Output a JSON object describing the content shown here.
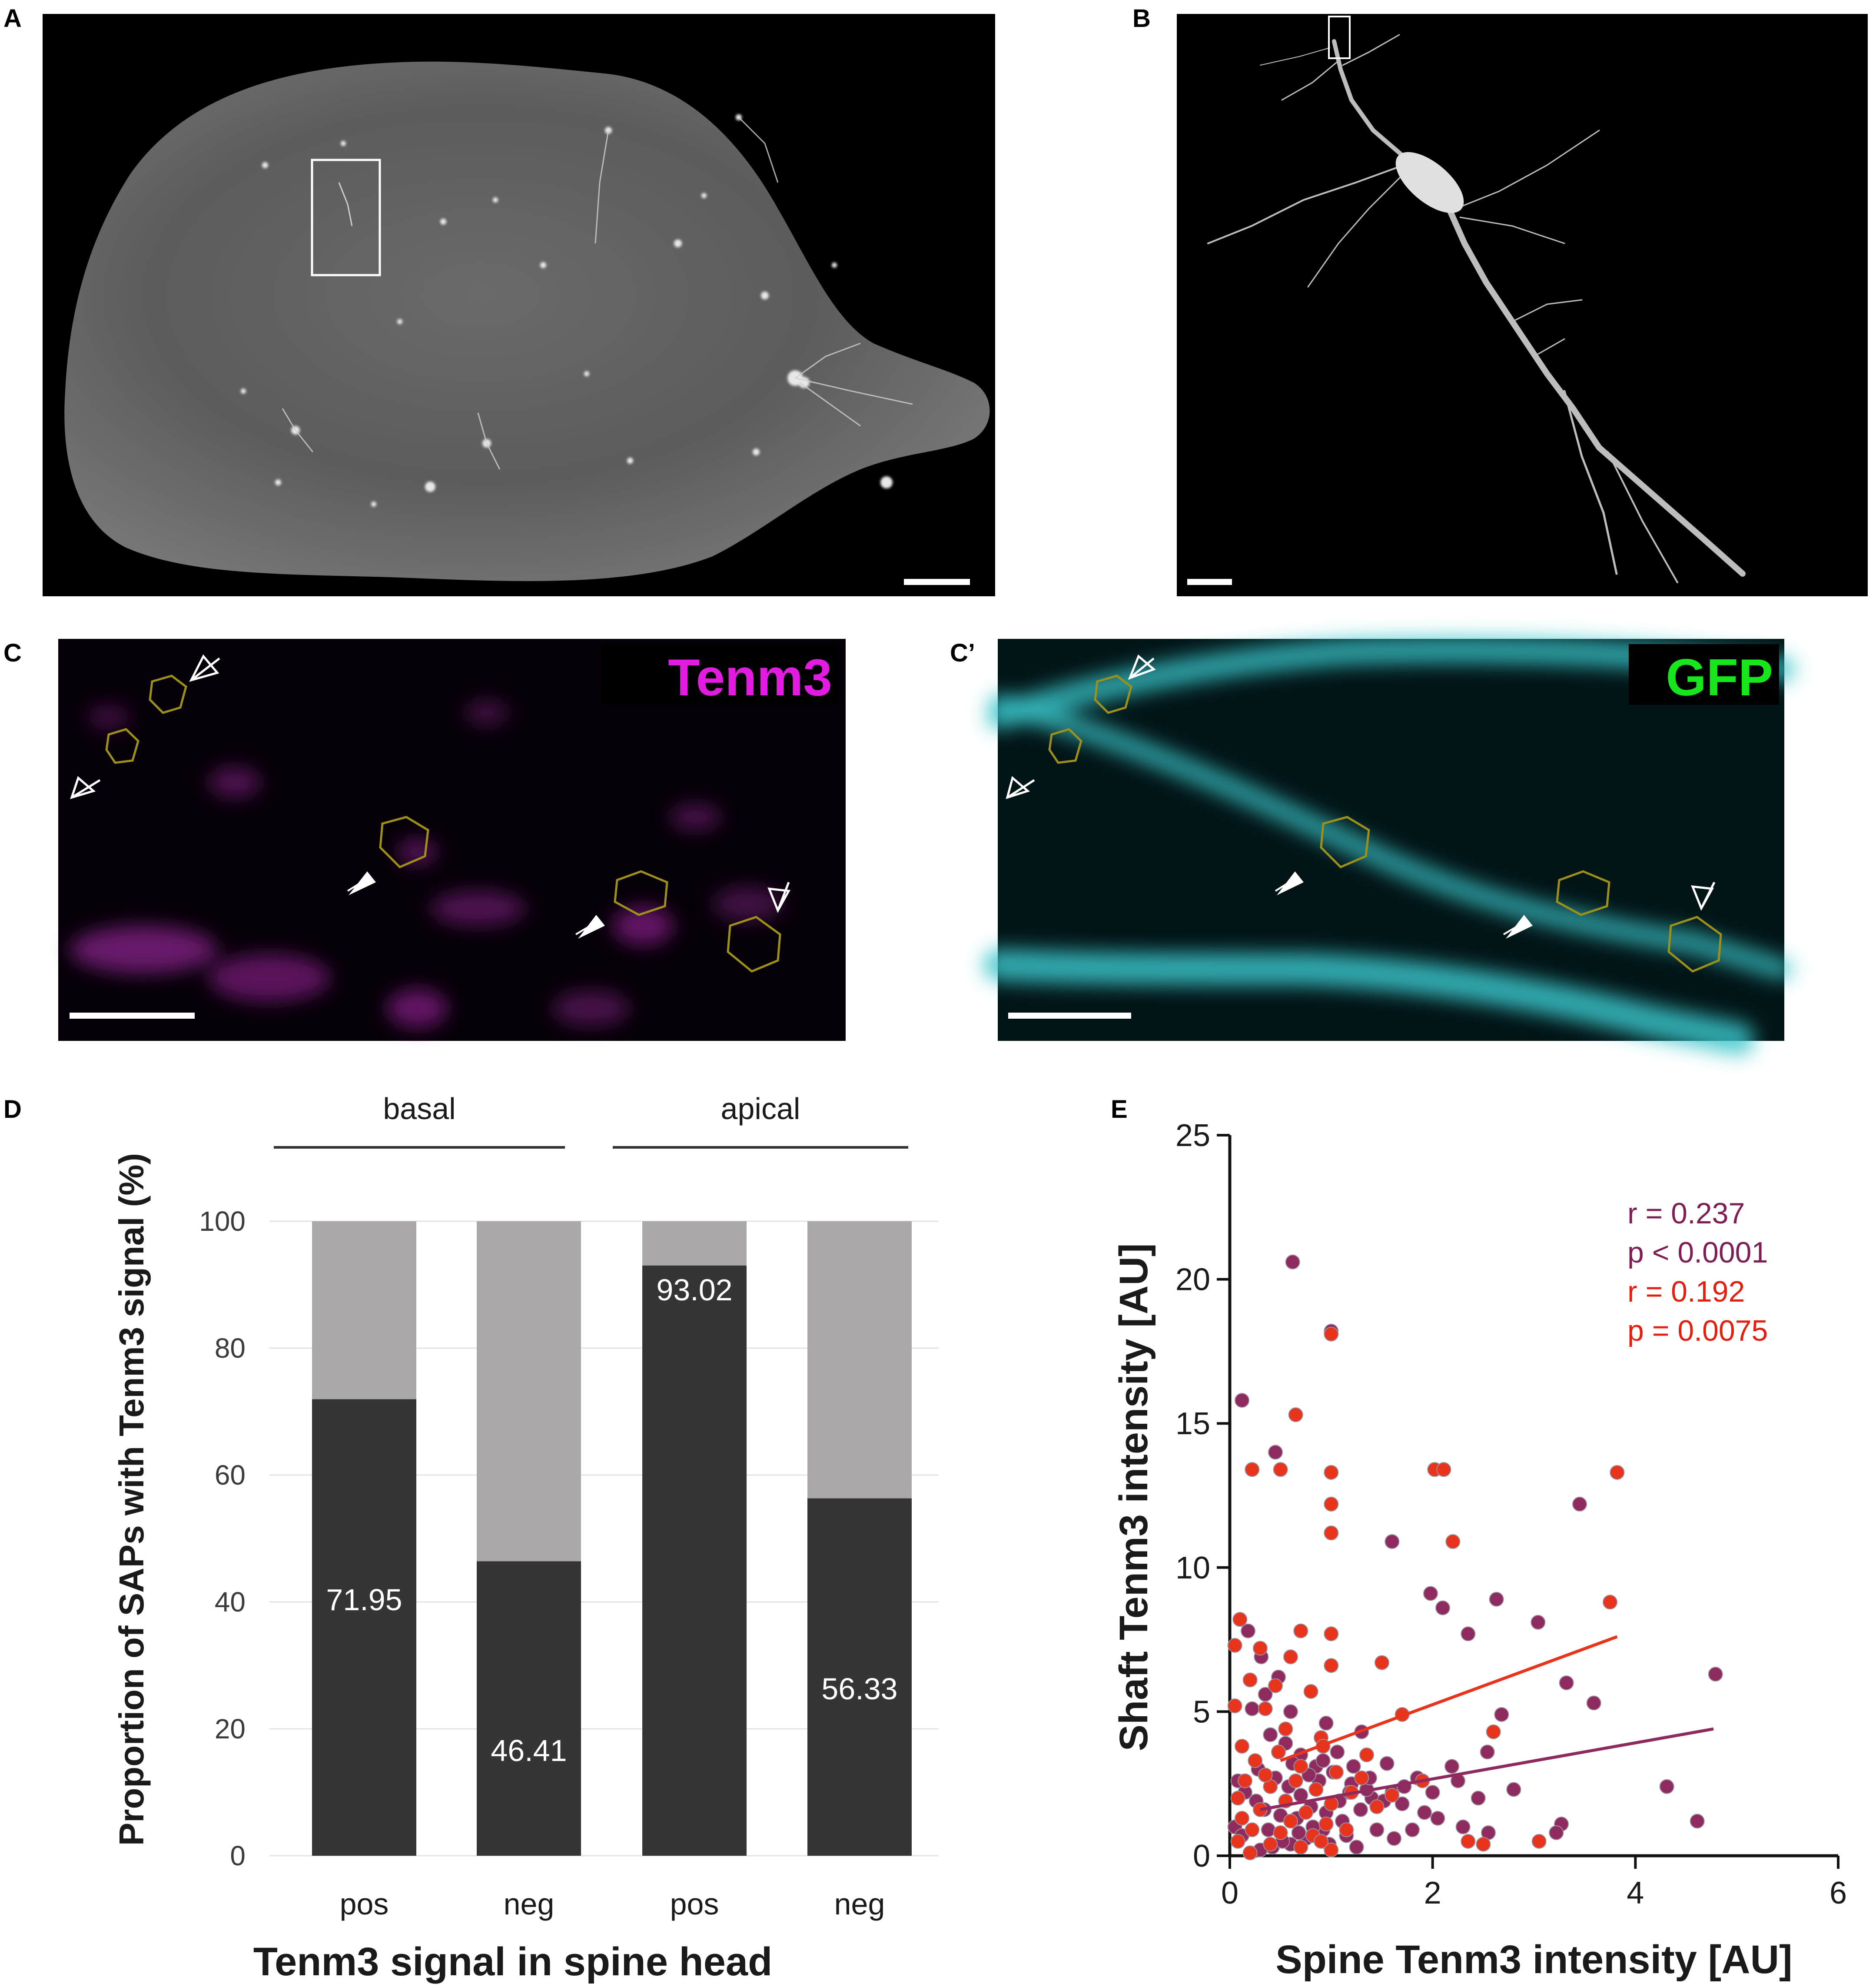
{
  "panels": {
    "A": {
      "label": "A"
    },
    "B": {
      "label": "B"
    },
    "C": {
      "label": "C",
      "channel": "Tenm3",
      "channel_color": "#e21be0"
    },
    "C2": {
      "label": "C’",
      "channel": "GFP",
      "channel_color": "#17e61d"
    },
    "D": {
      "label": "D"
    },
    "E": {
      "label": "E"
    }
  },
  "colors": {
    "micrograph_bg": "#000000",
    "tissue_gray": "#6e6e6e",
    "magenta": "#8a1f8c",
    "cyan": "#38c4c9",
    "roi_outline": "#9c8f1a",
    "bar_dark": "#353535",
    "bar_light": "#aaa8a8",
    "scatter_purple": "#8f2a5f",
    "scatter_red": "#e8341c",
    "stat_purple": "#7d1f52",
    "stat_red": "#e3200f"
  },
  "chart_data": [
    {
      "type": "bar",
      "panel": "D",
      "stacked": true,
      "group_labels": [
        "basal",
        "apical"
      ],
      "categories": [
        "pos",
        "neg",
        "pos",
        "neg"
      ],
      "values": [
        71.95,
        46.41,
        93.02,
        56.33
      ],
      "value_labels": [
        "71.95",
        "46.41",
        "93.02",
        "56.33"
      ],
      "ylabel": "Proportion of SAPs with Tenm3 signal (%)",
      "xlabel": "Tenm3 signal in spine head",
      "ylim": [
        0,
        100
      ],
      "yticks": [
        0,
        20,
        40,
        60,
        80,
        100
      ],
      "grid": true
    },
    {
      "type": "scatter",
      "panel": "E",
      "xlabel": "Spine Tenm3 intensity [AU]",
      "ylabel": "Shaft Tenm3 intensity [AU]",
      "xlim": [
        0,
        6
      ],
      "ylim": [
        0,
        25
      ],
      "xticks": [
        0,
        2,
        4,
        6
      ],
      "yticks": [
        0,
        5,
        10,
        15,
        20,
        25
      ],
      "annotations": [
        {
          "text": "r = 0.237",
          "color": "#7d1f52"
        },
        {
          "text": "p < 0.0001",
          "color": "#7d1f52"
        },
        {
          "text": "r = 0.192",
          "color": "#e3200f"
        },
        {
          "text": "p = 0.0075",
          "color": "#e3200f"
        }
      ],
      "series": [
        {
          "color": "#8f2a5f",
          "points": [
            [
              0.62,
              20.6
            ],
            [
              1.0,
              18.2
            ],
            [
              0.12,
              15.8
            ],
            [
              0.45,
              14.0
            ],
            [
              1.6,
              10.9
            ],
            [
              1.98,
              9.1
            ],
            [
              2.1,
              8.6
            ],
            [
              2.63,
              8.9
            ],
            [
              2.35,
              7.7
            ],
            [
              3.04,
              8.1
            ],
            [
              3.45,
              12.2
            ],
            [
              4.79,
              6.3
            ],
            [
              3.32,
              6.0
            ],
            [
              3.59,
              5.3
            ],
            [
              4.31,
              2.4
            ],
            [
              4.61,
              1.2
            ],
            [
              3.27,
              1.1
            ],
            [
              3.22,
              0.8
            ],
            [
              2.68,
              4.9
            ],
            [
              2.54,
              3.6
            ],
            [
              2.19,
              3.1
            ],
            [
              1.85,
              2.7
            ],
            [
              1.6,
              2.2
            ],
            [
              1.4,
              2.0
            ],
            [
              1.29,
              1.6
            ],
            [
              1.11,
              1.2
            ],
            [
              0.92,
              0.9
            ],
            [
              0.75,
              0.6
            ],
            [
              0.6,
              0.4
            ],
            [
              0.42,
              0.3
            ],
            [
              0.3,
              0.2
            ],
            [
              0.2,
              0.1
            ],
            [
              0.18,
              7.8
            ],
            [
              0.31,
              6.9
            ],
            [
              0.48,
              6.2
            ],
            [
              0.22,
              5.1
            ],
            [
              0.4,
              4.2
            ],
            [
              0.55,
              3.9
            ],
            [
              0.7,
              3.5
            ],
            [
              0.85,
              3.1
            ],
            [
              1.02,
              2.9
            ],
            [
              1.2,
              2.5
            ],
            [
              1.35,
              2.3
            ],
            [
              1.52,
              1.9
            ],
            [
              1.7,
              1.8
            ],
            [
              1.92,
              1.5
            ],
            [
              2.05,
              1.3
            ],
            [
              2.3,
              1.0
            ],
            [
              2.55,
              0.8
            ],
            [
              0.08,
              2.6
            ],
            [
              0.15,
              2.2
            ],
            [
              0.26,
              1.9
            ],
            [
              0.34,
              1.6
            ],
            [
              0.5,
              1.4
            ],
            [
              0.66,
              1.3
            ],
            [
              0.8,
              1.7
            ],
            [
              0.95,
              1.5
            ],
            [
              1.08,
              1.9
            ],
            [
              1.18,
              2.2
            ],
            [
              0.58,
              2.4
            ],
            [
              0.7,
              2.1
            ],
            [
              0.88,
              2.6
            ],
            [
              0.05,
              1.0
            ],
            [
              0.12,
              0.7
            ],
            [
              0.38,
              0.9
            ],
            [
              0.52,
              0.5
            ],
            [
              0.68,
              0.8
            ],
            [
              0.82,
              1.0
            ],
            [
              0.98,
              0.4
            ],
            [
              1.15,
              0.7
            ],
            [
              1.25,
              0.3
            ],
            [
              1.45,
              0.9
            ],
            [
              1.62,
              0.6
            ],
            [
              1.8,
              0.9
            ],
            [
              0.28,
              3.0
            ],
            [
              0.45,
              2.7
            ],
            [
              0.62,
              3.2
            ],
            [
              0.78,
              2.8
            ],
            [
              0.92,
              3.3
            ],
            [
              1.06,
              3.6
            ],
            [
              1.22,
              3.1
            ],
            [
              1.38,
              2.7
            ],
            [
              1.55,
              3.2
            ],
            [
              1.72,
              2.4
            ],
            [
              2.0,
              2.2
            ],
            [
              2.25,
              2.6
            ],
            [
              2.45,
              2.0
            ],
            [
              2.8,
              2.3
            ],
            [
              0.35,
              5.6
            ],
            [
              0.6,
              5.0
            ],
            [
              0.95,
              4.6
            ],
            [
              1.3,
              4.3
            ]
          ]
        },
        {
          "color": "#e8341c",
          "points": [
            [
              0.22,
              13.4
            ],
            [
              0.5,
              13.4
            ],
            [
              1.0,
              13.3
            ],
            [
              2.02,
              13.4
            ],
            [
              2.11,
              13.4
            ],
            [
              3.82,
              13.3
            ],
            [
              0.65,
              15.3
            ],
            [
              1.0,
              18.1
            ],
            [
              1.0,
              12.2
            ],
            [
              1.0,
              11.2
            ],
            [
              2.2,
              10.9
            ],
            [
              0.1,
              8.2
            ],
            [
              0.7,
              7.8
            ],
            [
              1.0,
              7.7
            ],
            [
              3.75,
              8.8
            ],
            [
              0.05,
              7.3
            ],
            [
              0.3,
              7.2
            ],
            [
              0.6,
              6.9
            ],
            [
              1.0,
              6.6
            ],
            [
              1.5,
              6.7
            ],
            [
              0.2,
              6.1
            ],
            [
              0.45,
              5.9
            ],
            [
              0.8,
              5.7
            ],
            [
              0.05,
              5.2
            ],
            [
              0.35,
              5.1
            ],
            [
              1.7,
              4.9
            ],
            [
              2.6,
              4.3
            ],
            [
              0.55,
              4.4
            ],
            [
              0.9,
              4.1
            ],
            [
              0.12,
              3.8
            ],
            [
              1.35,
              3.5
            ],
            [
              0.25,
              3.3
            ],
            [
              0.7,
              3.1
            ],
            [
              1.05,
              2.9
            ],
            [
              1.9,
              2.6
            ],
            [
              0.15,
              2.6
            ],
            [
              0.4,
              2.4
            ],
            [
              0.85,
              2.3
            ],
            [
              1.2,
              2.2
            ],
            [
              0.08,
              2.0
            ],
            [
              0.55,
              1.9
            ],
            [
              1.0,
              1.8
            ],
            [
              0.3,
              1.6
            ],
            [
              0.75,
              1.5
            ],
            [
              1.45,
              1.7
            ],
            [
              0.12,
              1.3
            ],
            [
              0.6,
              1.2
            ],
            [
              0.95,
              1.1
            ],
            [
              0.22,
              0.9
            ],
            [
              0.5,
              0.8
            ],
            [
              0.82,
              0.7
            ],
            [
              1.15,
              0.9
            ],
            [
              0.08,
              0.5
            ],
            [
              0.4,
              0.4
            ],
            [
              0.7,
              0.3
            ],
            [
              1.0,
              0.2
            ],
            [
              0.2,
              0.1
            ],
            [
              0.9,
              0.5
            ],
            [
              2.35,
              0.5
            ],
            [
              2.5,
              0.4
            ],
            [
              3.05,
              0.5
            ],
            [
              0.35,
              2.8
            ],
            [
              0.65,
              2.6
            ],
            [
              1.3,
              2.7
            ],
            [
              0.48,
              3.6
            ],
            [
              0.92,
              3.8
            ],
            [
              1.6,
              2.1
            ]
          ]
        }
      ],
      "fit_lines": [
        {
          "color": "#e8341c",
          "x": [
            0.5,
            3.82
          ],
          "y": [
            3.3,
            7.6
          ]
        },
        {
          "color": "#8f2a5f",
          "x": [
            0.3,
            4.77
          ],
          "y": [
            1.6,
            4.4
          ]
        }
      ]
    }
  ]
}
